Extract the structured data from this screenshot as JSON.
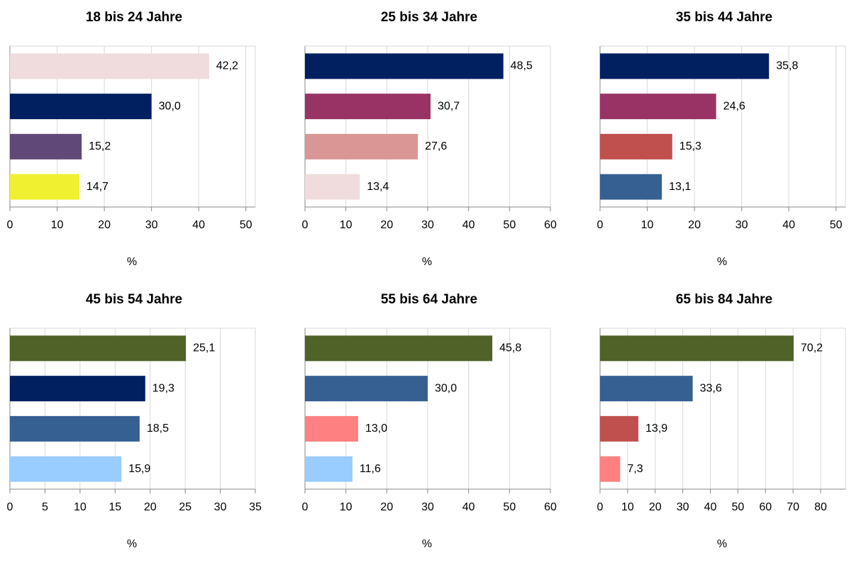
{
  "chart_data": [
    {
      "type": "bar",
      "orientation": "horizontal",
      "title": "18 bis 24 Jahre",
      "categories": [
        null,
        null,
        null,
        null
      ],
      "values": [
        42.2,
        30.0,
        15.2,
        14.7
      ],
      "value_labels": [
        "42,2",
        "30,0",
        "15,2",
        "14,7"
      ],
      "colors": [
        "#f0dcdc",
        "#002060",
        "#604878",
        "#f0f030"
      ],
      "xlim": [
        0,
        52
      ],
      "xticks": [
        0,
        10,
        20,
        30,
        40,
        50
      ],
      "xlabel": "%",
      "grid": true
    },
    {
      "type": "bar",
      "orientation": "horizontal",
      "title": "25 bis 34 Jahre",
      "categories": [
        null,
        null,
        null,
        null
      ],
      "values": [
        48.5,
        30.7,
        27.6,
        13.4
      ],
      "value_labels": [
        "48,5",
        "30,7",
        "27,6",
        "13,4"
      ],
      "colors": [
        "#002060",
        "#993366",
        "#da9694",
        "#f0dcdc"
      ],
      "xlim": [
        0,
        60
      ],
      "xticks": [
        0,
        10,
        20,
        30,
        40,
        50,
        60
      ],
      "xlabel": "%",
      "grid": true
    },
    {
      "type": "bar",
      "orientation": "horizontal",
      "title": "35 bis 44 Jahre",
      "categories": [
        null,
        null,
        null,
        null
      ],
      "values": [
        35.8,
        24.6,
        15.3,
        13.1
      ],
      "value_labels": [
        "35,8",
        "24,6",
        "15,3",
        "13,1"
      ],
      "colors": [
        "#002060",
        "#993366",
        "#c0504d",
        "#366092"
      ],
      "xlim": [
        0,
        52
      ],
      "xticks": [
        0,
        10,
        20,
        30,
        40,
        50
      ],
      "xlabel": "%",
      "grid": true
    },
    {
      "type": "bar",
      "orientation": "horizontal",
      "title": "45 bis 54 Jahre",
      "categories": [
        null,
        null,
        null,
        null
      ],
      "values": [
        25.1,
        19.3,
        18.5,
        15.9
      ],
      "value_labels": [
        "25,1",
        "19,3",
        "18,5",
        "15,9"
      ],
      "colors": [
        "#4f6228",
        "#002060",
        "#366092",
        "#99ccff"
      ],
      "xlim": [
        0,
        35
      ],
      "xticks": [
        0,
        5,
        10,
        15,
        20,
        25,
        30,
        35
      ],
      "xlabel": "%",
      "grid": true
    },
    {
      "type": "bar",
      "orientation": "horizontal",
      "title": "55 bis 64 Jahre",
      "categories": [
        null,
        null,
        null,
        null
      ],
      "values": [
        45.8,
        30.0,
        13.0,
        11.6
      ],
      "value_labels": [
        "45,8",
        "30,0",
        "13,0",
        "11,6"
      ],
      "colors": [
        "#4f6228",
        "#366092",
        "#ff8080",
        "#99ccff"
      ],
      "xlim": [
        0,
        60
      ],
      "xticks": [
        0,
        10,
        20,
        30,
        40,
        50,
        60
      ],
      "xlabel": "%",
      "grid": true
    },
    {
      "type": "bar",
      "orientation": "horizontal",
      "title": "65 bis 84 Jahre",
      "categories": [
        null,
        null,
        null,
        null
      ],
      "values": [
        70.2,
        33.6,
        13.9,
        7.3
      ],
      "value_labels": [
        "70,2",
        "33,6",
        "13,9",
        "7,3"
      ],
      "colors": [
        "#4f6228",
        "#366092",
        "#c0504d",
        "#ff8080"
      ],
      "xlim": [
        0,
        89
      ],
      "xticks": [
        0,
        10,
        20,
        30,
        40,
        50,
        60,
        70,
        80
      ],
      "xlabel": "%",
      "grid": true
    }
  ]
}
